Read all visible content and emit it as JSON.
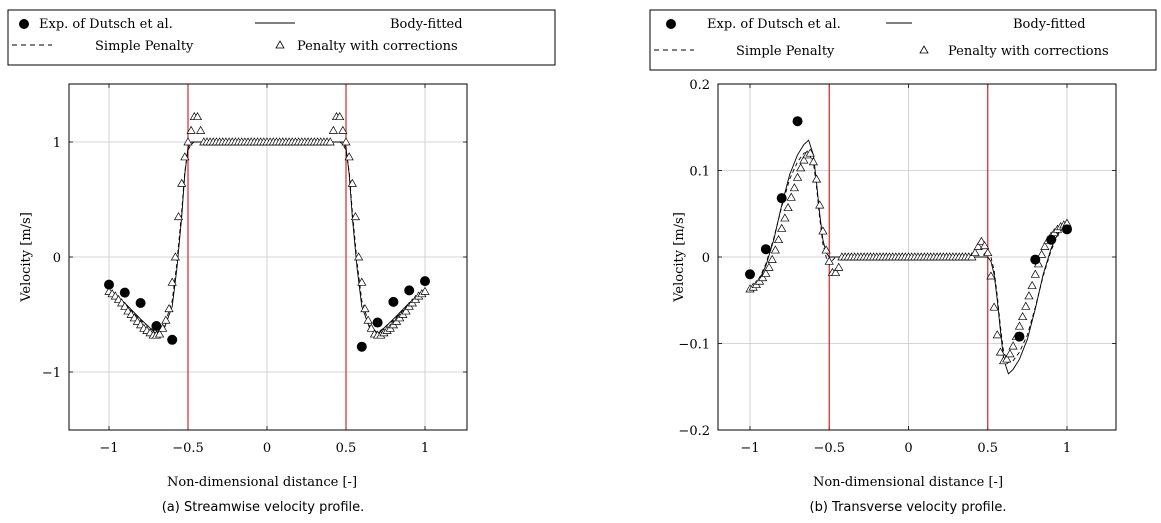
{
  "panels": [
    {
      "caption": "(a) Streamwise velocity profile.",
      "legend": [
        "Exp. of Dutsch et al.",
        "Body-fitted",
        "Simple Penalty",
        "Penalty with corrections"
      ],
      "xlabel": "Non-dimensional distance [-]",
      "ylabel": "Velocity [m/s]",
      "xticks": [
        "−1",
        "−0.5",
        "0",
        "0.5",
        "1"
      ],
      "yticks": [
        "−1",
        "0",
        "1"
      ]
    },
    {
      "caption": "(b) Transverse velocity profile.",
      "legend": [
        "Exp. of Dutsch et al.",
        "Body-fitted",
        "Simple Penalty",
        "Penalty with corrections"
      ],
      "xlabel": "Non-dimensional distance [-]",
      "ylabel": "Velocity [m/s]",
      "xticks": [
        "−1",
        "−0.5",
        "0",
        "0.5",
        "1"
      ],
      "yticks": [
        "−0.2",
        "−0.1",
        "0",
        "0.1",
        "0.2"
      ]
    }
  ],
  "colors": {
    "marker": "#000000",
    "cylinder_edge": "#d62728",
    "grid": "#c8c8c8"
  },
  "chart_data": [
    {
      "type": "line",
      "title": "",
      "xlabel": "Non-dimensional distance [-]",
      "ylabel": "Velocity [m/s]",
      "xlim": [
        -1.1,
        1.1
      ],
      "ylim": [
        -1.5,
        1.5
      ],
      "xticks": [
        -1,
        -0.5,
        0,
        0.5,
        1
      ],
      "yticks": [
        -1,
        0,
        1
      ],
      "grid": true,
      "legend_position": "top",
      "vertical_lines": [
        -0.5,
        0.5
      ],
      "series": [
        {
          "name": "Exp. of Dutsch et al.",
          "style": "filled-circle",
          "x": [
            -1.0,
            -0.9,
            -0.8,
            -0.7,
            -0.6,
            0.6,
            0.7,
            0.8,
            0.9,
            1.0
          ],
          "y": [
            -0.24,
            -0.31,
            -0.4,
            -0.6,
            -0.72,
            -0.78,
            -0.57,
            -0.39,
            -0.29,
            -0.21
          ]
        },
        {
          "name": "Body-fitted",
          "style": "solid",
          "x": [
            -1.0,
            -0.9,
            -0.8,
            -0.7,
            -0.65,
            -0.6,
            -0.57,
            -0.54,
            -0.52,
            -0.5,
            -0.48,
            -0.46,
            -0.44,
            0.44,
            0.46,
            0.48,
            0.5,
            0.52,
            0.54,
            0.57,
            0.6,
            0.65,
            0.7,
            0.8,
            0.9,
            1.0
          ],
          "y": [
            -0.29,
            -0.4,
            -0.54,
            -0.67,
            -0.62,
            -0.43,
            -0.1,
            0.35,
            0.72,
            0.95,
            1.0,
            1.0,
            1.0,
            1.0,
            1.0,
            1.0,
            0.95,
            0.72,
            0.35,
            -0.1,
            -0.43,
            -0.62,
            -0.67,
            -0.54,
            -0.4,
            -0.29
          ]
        },
        {
          "name": "Simple Penalty",
          "style": "dashed",
          "x": [
            -1.0,
            -0.9,
            -0.8,
            -0.7,
            -0.65,
            -0.6,
            -0.57,
            -0.54,
            -0.52,
            -0.5,
            -0.48,
            -0.46,
            -0.44,
            0.44,
            0.46,
            0.48,
            0.5,
            0.52,
            0.54,
            0.57,
            0.6,
            0.65,
            0.7,
            0.8,
            0.9,
            1.0
          ],
          "y": [
            -0.3,
            -0.41,
            -0.55,
            -0.66,
            -0.6,
            -0.38,
            -0.05,
            0.4,
            0.74,
            0.93,
            0.98,
            1.0,
            1.0,
            1.0,
            1.0,
            0.98,
            0.93,
            0.74,
            0.4,
            -0.05,
            -0.38,
            -0.6,
            -0.66,
            -0.55,
            -0.41,
            -0.3
          ]
        },
        {
          "name": "Penalty with corrections",
          "style": "open-triangle",
          "x": [
            -1.0,
            -0.98,
            -0.96,
            -0.94,
            -0.92,
            -0.9,
            -0.88,
            -0.86,
            -0.84,
            -0.82,
            -0.8,
            -0.78,
            -0.76,
            -0.74,
            -0.72,
            -0.7,
            -0.68,
            -0.66,
            -0.64,
            -0.62,
            -0.6,
            -0.58,
            -0.56,
            -0.54,
            -0.52,
            -0.5,
            -0.48,
            -0.46,
            -0.44,
            -0.42,
            -0.4,
            -0.38,
            -0.36,
            -0.34,
            -0.32,
            -0.3,
            -0.28,
            -0.26,
            -0.24,
            -0.22,
            -0.2,
            -0.18,
            -0.16,
            -0.14,
            -0.12,
            -0.1,
            -0.08,
            -0.06,
            -0.04,
            -0.02,
            0.0,
            0.02,
            0.04,
            0.06,
            0.08,
            0.1,
            0.12,
            0.14,
            0.16,
            0.18,
            0.2,
            0.22,
            0.24,
            0.26,
            0.28,
            0.3,
            0.32,
            0.34,
            0.36,
            0.38,
            0.4,
            0.42,
            0.44,
            0.46,
            0.48,
            0.5,
            0.52,
            0.54,
            0.56,
            0.58,
            0.6,
            0.62,
            0.64,
            0.66,
            0.68,
            0.7,
            0.72,
            0.74,
            0.76,
            0.78,
            0.8,
            0.82,
            0.84,
            0.86,
            0.88,
            0.9,
            0.92,
            0.94,
            0.96,
            0.98,
            1.0
          ],
          "y": [
            -0.3,
            -0.32,
            -0.34,
            -0.37,
            -0.4,
            -0.43,
            -0.47,
            -0.5,
            -0.53,
            -0.56,
            -0.59,
            -0.62,
            -0.64,
            -0.66,
            -0.68,
            -0.68,
            -0.67,
            -0.62,
            -0.55,
            -0.45,
            -0.22,
            0.0,
            0.35,
            0.64,
            0.87,
            1.0,
            1.1,
            1.22,
            1.22,
            1.1,
            1.0,
            1.0,
            1.0,
            1.0,
            1.0,
            1.0,
            1.0,
            1.0,
            1.0,
            1.0,
            1.0,
            1.0,
            1.0,
            1.0,
            1.0,
            1.0,
            1.0,
            1.0,
            1.0,
            1.0,
            1.0,
            1.0,
            1.0,
            1.0,
            1.0,
            1.0,
            1.0,
            1.0,
            1.0,
            1.0,
            1.0,
            1.0,
            1.0,
            1.0,
            1.0,
            1.0,
            1.0,
            1.0,
            1.0,
            1.0,
            1.0,
            1.1,
            1.22,
            1.22,
            1.1,
            1.0,
            0.87,
            0.64,
            0.35,
            0.0,
            -0.22,
            -0.45,
            -0.55,
            -0.62,
            -0.67,
            -0.68,
            -0.68,
            -0.66,
            -0.64,
            -0.62,
            -0.59,
            -0.56,
            -0.53,
            -0.5,
            -0.47,
            -0.43,
            -0.4,
            -0.37,
            -0.34,
            -0.32,
            -0.3
          ]
        }
      ]
    },
    {
      "type": "line",
      "title": "",
      "xlabel": "Non-dimensional distance [-]",
      "ylabel": "Velocity [m/s]",
      "xlim": [
        -1.1,
        1.1
      ],
      "ylim": [
        -0.2,
        0.2
      ],
      "xticks": [
        -1,
        -0.5,
        0,
        0.5,
        1
      ],
      "yticks": [
        -0.2,
        -0.1,
        0,
        0.1,
        0.2
      ],
      "grid": true,
      "legend_position": "top",
      "vertical_lines": [
        -0.5,
        0.5
      ],
      "series": [
        {
          "name": "Exp. of Dutsch et al.",
          "style": "filled-circle",
          "x": [
            -1.0,
            -0.9,
            -0.8,
            -0.7,
            0.7,
            0.8,
            0.9,
            1.0
          ],
          "y": [
            -0.02,
            0.009,
            0.068,
            0.157,
            -0.092,
            -0.003,
            0.02,
            0.032
          ]
        },
        {
          "name": "Body-fitted",
          "style": "solid",
          "x": [
            -1.0,
            -0.95,
            -0.9,
            -0.85,
            -0.8,
            -0.75,
            -0.7,
            -0.66,
            -0.63,
            -0.6,
            -0.58,
            -0.56,
            -0.54,
            -0.52,
            -0.5,
            -0.48,
            -0.46,
            0.46,
            0.48,
            0.5,
            0.52,
            0.54,
            0.56,
            0.58,
            0.6,
            0.63,
            0.66,
            0.7,
            0.75,
            0.8,
            0.85,
            0.9,
            0.95,
            1.0
          ],
          "y": [
            -0.04,
            -0.03,
            -0.01,
            0.02,
            0.06,
            0.095,
            0.118,
            0.13,
            0.135,
            0.118,
            0.085,
            0.05,
            0.02,
            0.005,
            0.0,
            0.0,
            0.0,
            0.0,
            0.0,
            0.0,
            -0.005,
            -0.02,
            -0.05,
            -0.085,
            -0.118,
            -0.135,
            -0.13,
            -0.118,
            -0.095,
            -0.06,
            -0.02,
            0.01,
            0.03,
            0.04
          ]
        },
        {
          "name": "Simple Penalty",
          "style": "dashed",
          "x": [
            -1.0,
            -0.95,
            -0.9,
            -0.85,
            -0.8,
            -0.75,
            -0.7,
            -0.66,
            -0.63,
            -0.6,
            -0.58,
            -0.56,
            -0.54,
            -0.52,
            -0.5,
            -0.48,
            -0.46,
            0.46,
            0.48,
            0.5,
            0.52,
            0.54,
            0.56,
            0.58,
            0.6,
            0.63,
            0.66,
            0.7,
            0.75,
            0.8,
            0.85,
            0.9,
            0.95,
            1.0
          ],
          "y": [
            -0.038,
            -0.028,
            -0.008,
            0.022,
            0.058,
            0.09,
            0.11,
            0.12,
            0.122,
            0.11,
            0.08,
            0.045,
            0.015,
            0.0,
            -0.008,
            -0.004,
            0.0,
            0.0,
            0.004,
            0.008,
            0.0,
            -0.015,
            -0.045,
            -0.08,
            -0.11,
            -0.122,
            -0.12,
            -0.11,
            -0.09,
            -0.058,
            -0.022,
            0.008,
            0.028,
            0.038
          ]
        },
        {
          "name": "Penalty with corrections",
          "style": "open-triangle",
          "x": [
            -1.0,
            -0.98,
            -0.96,
            -0.94,
            -0.92,
            -0.9,
            -0.88,
            -0.86,
            -0.84,
            -0.82,
            -0.8,
            -0.78,
            -0.76,
            -0.74,
            -0.72,
            -0.7,
            -0.68,
            -0.66,
            -0.64,
            -0.62,
            -0.6,
            -0.58,
            -0.56,
            -0.54,
            -0.52,
            -0.5,
            -0.48,
            -0.46,
            -0.44,
            -0.42,
            -0.4,
            -0.38,
            -0.36,
            -0.34,
            -0.32,
            -0.3,
            -0.28,
            -0.26,
            -0.24,
            -0.22,
            -0.2,
            -0.18,
            -0.16,
            -0.14,
            -0.12,
            -0.1,
            -0.08,
            -0.06,
            -0.04,
            -0.02,
            0.0,
            0.02,
            0.04,
            0.06,
            0.08,
            0.1,
            0.12,
            0.14,
            0.16,
            0.18,
            0.2,
            0.22,
            0.24,
            0.26,
            0.28,
            0.3,
            0.32,
            0.34,
            0.36,
            0.38,
            0.4,
            0.42,
            0.44,
            0.46,
            0.48,
            0.5,
            0.52,
            0.54,
            0.56,
            0.58,
            0.6,
            0.62,
            0.64,
            0.66,
            0.68,
            0.7,
            0.72,
            0.74,
            0.76,
            0.78,
            0.8,
            0.82,
            0.84,
            0.86,
            0.88,
            0.9,
            0.92,
            0.94,
            0.96,
            0.98,
            1.0
          ],
          "y": [
            -0.037,
            -0.035,
            -0.032,
            -0.028,
            -0.024,
            -0.019,
            -0.012,
            -0.003,
            0.008,
            0.02,
            0.033,
            0.045,
            0.057,
            0.069,
            0.08,
            0.092,
            0.103,
            0.112,
            0.118,
            0.12,
            0.11,
            0.09,
            0.06,
            0.03,
            0.008,
            -0.005,
            -0.018,
            -0.018,
            -0.012,
            0.0,
            0.0,
            0.0,
            0.0,
            0.0,
            0.0,
            0.0,
            0.0,
            0.0,
            0.0,
            0.0,
            0.0,
            0.0,
            0.0,
            0.0,
            0.0,
            0.0,
            0.0,
            0.0,
            0.0,
            0.0,
            0.0,
            0.0,
            0.0,
            0.0,
            0.0,
            0.0,
            0.0,
            0.0,
            0.0,
            0.0,
            0.0,
            0.0,
            0.0,
            0.0,
            0.0,
            0.0,
            0.0,
            0.0,
            0.0,
            0.0,
            0.0,
            0.005,
            0.012,
            0.018,
            0.013,
            0.005,
            -0.022,
            -0.058,
            -0.09,
            -0.11,
            -0.12,
            -0.118,
            -0.112,
            -0.103,
            -0.092,
            -0.08,
            -0.069,
            -0.057,
            -0.045,
            -0.033,
            -0.02,
            -0.008,
            0.003,
            0.012,
            0.019,
            0.024,
            0.028,
            0.032,
            0.035,
            0.037,
            0.039
          ]
        }
      ]
    }
  ]
}
